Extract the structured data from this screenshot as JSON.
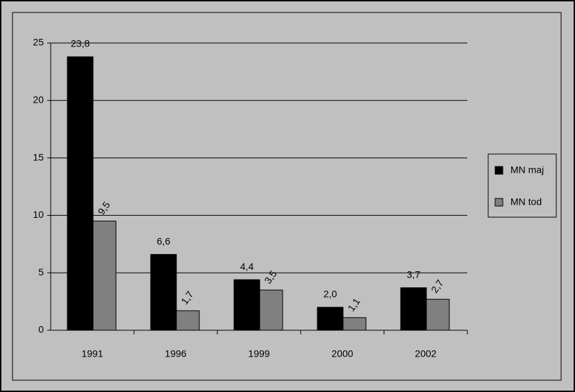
{
  "chart_data": {
    "type": "bar",
    "categories": [
      "1991",
      "1996",
      "1999",
      "2000",
      "2002"
    ],
    "series": [
      {
        "name": "MN maj",
        "color": "#000000",
        "values": [
          23.8,
          6.6,
          4.4,
          2.0,
          3.7
        ],
        "value_labels": [
          "23,8",
          "6,6",
          "4,4",
          "2,0",
          "3,7"
        ]
      },
      {
        "name": "MN tod",
        "color": "#808080",
        "values": [
          9.5,
          1.7,
          3.5,
          1.1,
          2.7
        ],
        "value_labels": [
          "9,5",
          "1,7",
          "3,5",
          "1,1",
          "2,7"
        ]
      }
    ],
    "ylim": [
      0,
      25
    ],
    "yticks": [
      0,
      5,
      10,
      15,
      20,
      25
    ],
    "grid": true,
    "legend": "right"
  }
}
